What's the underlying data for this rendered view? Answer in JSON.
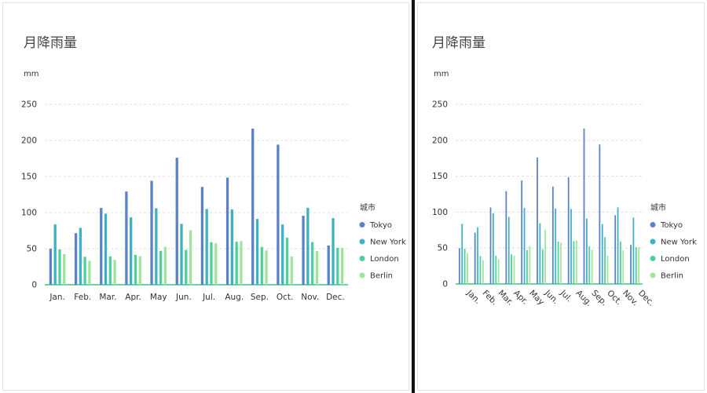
{
  "left_chart": {
    "title": "月降雨量",
    "unit": "mm",
    "legend_title": "城市"
  },
  "right_chart": {
    "title": "月降雨量",
    "unit": "mm",
    "legend_title": "城市"
  },
  "colors": {
    "Tokyo": "#5b82c6",
    "New York": "#3fb2c2",
    "London": "#4fcfa0",
    "Berlin": "#9fe59a",
    "grid": "#dddddd",
    "axis": "#3ec28a"
  },
  "chart_data": [
    {
      "type": "bar",
      "title": "月降雨量",
      "ylabel": "mm",
      "ylim": [
        0,
        250
      ],
      "yticks": [
        0,
        50,
        100,
        150,
        200,
        250
      ],
      "grid": true,
      "legend_title": "城市",
      "legend_position": "right",
      "tick_rotation": 0,
      "categories": [
        "Jan.",
        "Feb.",
        "Mar.",
        "Apr.",
        "May",
        "Jun.",
        "Jul.",
        "Aug.",
        "Sep.",
        "Oct.",
        "Nov.",
        "Dec."
      ],
      "series": [
        {
          "name": "Tokyo",
          "values": [
            49.9,
            71.5,
            106.4,
            129.2,
            144.0,
            176.0,
            135.6,
            148.5,
            216.4,
            194.1,
            95.6,
            54.4
          ]
        },
        {
          "name": "New York",
          "values": [
            83.6,
            78.8,
            98.5,
            93.4,
            106.0,
            84.5,
            105.0,
            104.3,
            91.2,
            83.5,
            106.6,
            92.3
          ]
        },
        {
          "name": "London",
          "values": [
            48.9,
            38.8,
            39.3,
            41.4,
            47.0,
            48.3,
            59.0,
            59.6,
            52.4,
            65.2,
            59.3,
            51.2
          ]
        },
        {
          "name": "Berlin",
          "values": [
            42.4,
            33.2,
            34.5,
            39.7,
            52.6,
            75.5,
            57.4,
            60.4,
            47.6,
            39.1,
            46.8,
            51.1
          ]
        }
      ]
    },
    {
      "type": "bar",
      "title": "月降雨量",
      "ylabel": "mm",
      "ylim": [
        0,
        250
      ],
      "yticks": [
        0,
        50,
        100,
        150,
        200,
        250
      ],
      "grid": true,
      "legend_title": "城市",
      "legend_position": "right",
      "tick_rotation": 45,
      "categories": [
        "Jan.",
        "Feb.",
        "Mar.",
        "Apr.",
        "May",
        "Jun.",
        "Jul.",
        "Aug.",
        "Sep.",
        "Oct.",
        "Nov.",
        "Dec."
      ],
      "series": [
        {
          "name": "Tokyo",
          "values": [
            49.9,
            71.5,
            106.4,
            129.2,
            144.0,
            176.0,
            135.6,
            148.5,
            216.4,
            194.1,
            95.6,
            54.4
          ]
        },
        {
          "name": "New York",
          "values": [
            83.6,
            78.8,
            98.5,
            93.4,
            106.0,
            84.5,
            105.0,
            104.3,
            91.2,
            83.5,
            106.6,
            92.3
          ]
        },
        {
          "name": "London",
          "values": [
            48.9,
            38.8,
            39.3,
            41.4,
            47.0,
            48.3,
            59.0,
            59.6,
            52.4,
            65.2,
            59.3,
            51.2
          ]
        },
        {
          "name": "Berlin",
          "values": [
            42.4,
            33.2,
            34.5,
            39.7,
            52.6,
            75.5,
            57.4,
            60.4,
            47.6,
            39.1,
            46.8,
            51.1
          ]
        }
      ]
    }
  ]
}
